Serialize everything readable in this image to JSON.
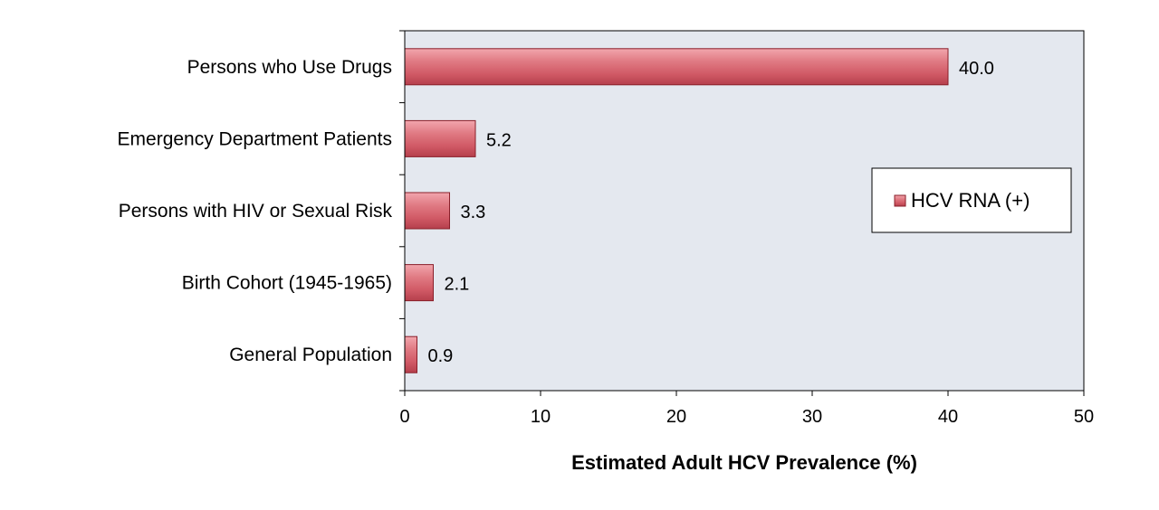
{
  "chart_data": {
    "type": "bar",
    "orientation": "horizontal",
    "categories": [
      "Persons who Use Drugs",
      "Emergency Department Patients",
      "Persons with HIV or Sexual Risk",
      "Birth Cohort (1945-1965)",
      "General Population"
    ],
    "series": [
      {
        "name": "HCV RNA (+)",
        "values": [
          40.0,
          5.2,
          3.3,
          2.1,
          0.9
        ]
      }
    ],
    "data_labels": [
      "40.0",
      "5.2",
      "3.3",
      "2.1",
      "0.9"
    ],
    "xlabel": "Estimated Adult HCV Prevalence (%)",
    "ylabel": "",
    "xlim": [
      0,
      50
    ],
    "x_ticks": [
      0,
      10,
      20,
      30,
      40,
      50
    ],
    "grid": false,
    "legend_position": "right",
    "colors": {
      "bar": "#d9606b",
      "bar_highlight": "#f2a6ad",
      "bar_edge": "#8a1f2a",
      "plot_background": "#e4e8ef",
      "axis": "#000000"
    }
  }
}
